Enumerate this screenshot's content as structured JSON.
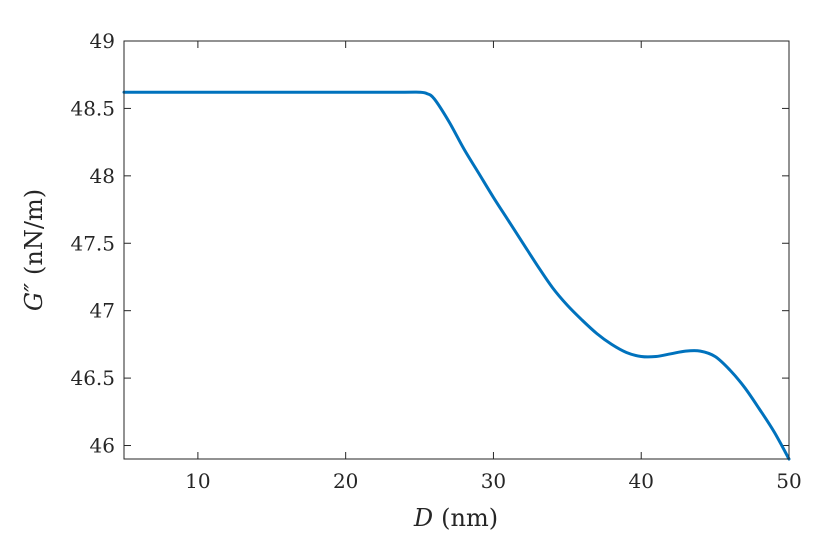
{
  "chart_data": {
    "type": "line",
    "xlabel_var": "D",
    "xlabel_unit": "(nm)",
    "ylabel_var": "G″",
    "ylabel_unit": "(nN/m)",
    "xlim": [
      5,
      50
    ],
    "ylim": [
      45.9,
      49
    ],
    "xticks": [
      10,
      20,
      30,
      40,
      50
    ],
    "xtick_labels": [
      "10",
      "20",
      "30",
      "40",
      "50"
    ],
    "yticks": [
      46,
      46.5,
      47,
      47.5,
      48,
      48.5,
      49
    ],
    "ytick_labels": [
      "46",
      "46.5",
      "47",
      "47.5",
      "48",
      "48.5",
      "49"
    ],
    "grid": false,
    "line_color": "#0072BD",
    "series": [
      {
        "x": [
          5,
          10,
          15,
          20,
          24,
          25,
          25.5,
          26,
          27,
          28,
          29,
          30,
          31,
          32,
          33,
          34,
          35,
          36,
          37,
          38,
          39,
          40,
          41,
          42,
          43,
          44,
          45,
          46,
          47,
          48,
          49,
          50
        ],
        "y": [
          48.62,
          48.62,
          48.62,
          48.62,
          48.62,
          48.62,
          48.61,
          48.57,
          48.4,
          48.2,
          48.02,
          47.84,
          47.67,
          47.5,
          47.33,
          47.17,
          47.04,
          46.93,
          46.83,
          46.75,
          46.69,
          46.66,
          46.66,
          46.68,
          46.7,
          46.7,
          46.66,
          46.56,
          46.43,
          46.27,
          46.1,
          45.9
        ]
      }
    ]
  }
}
